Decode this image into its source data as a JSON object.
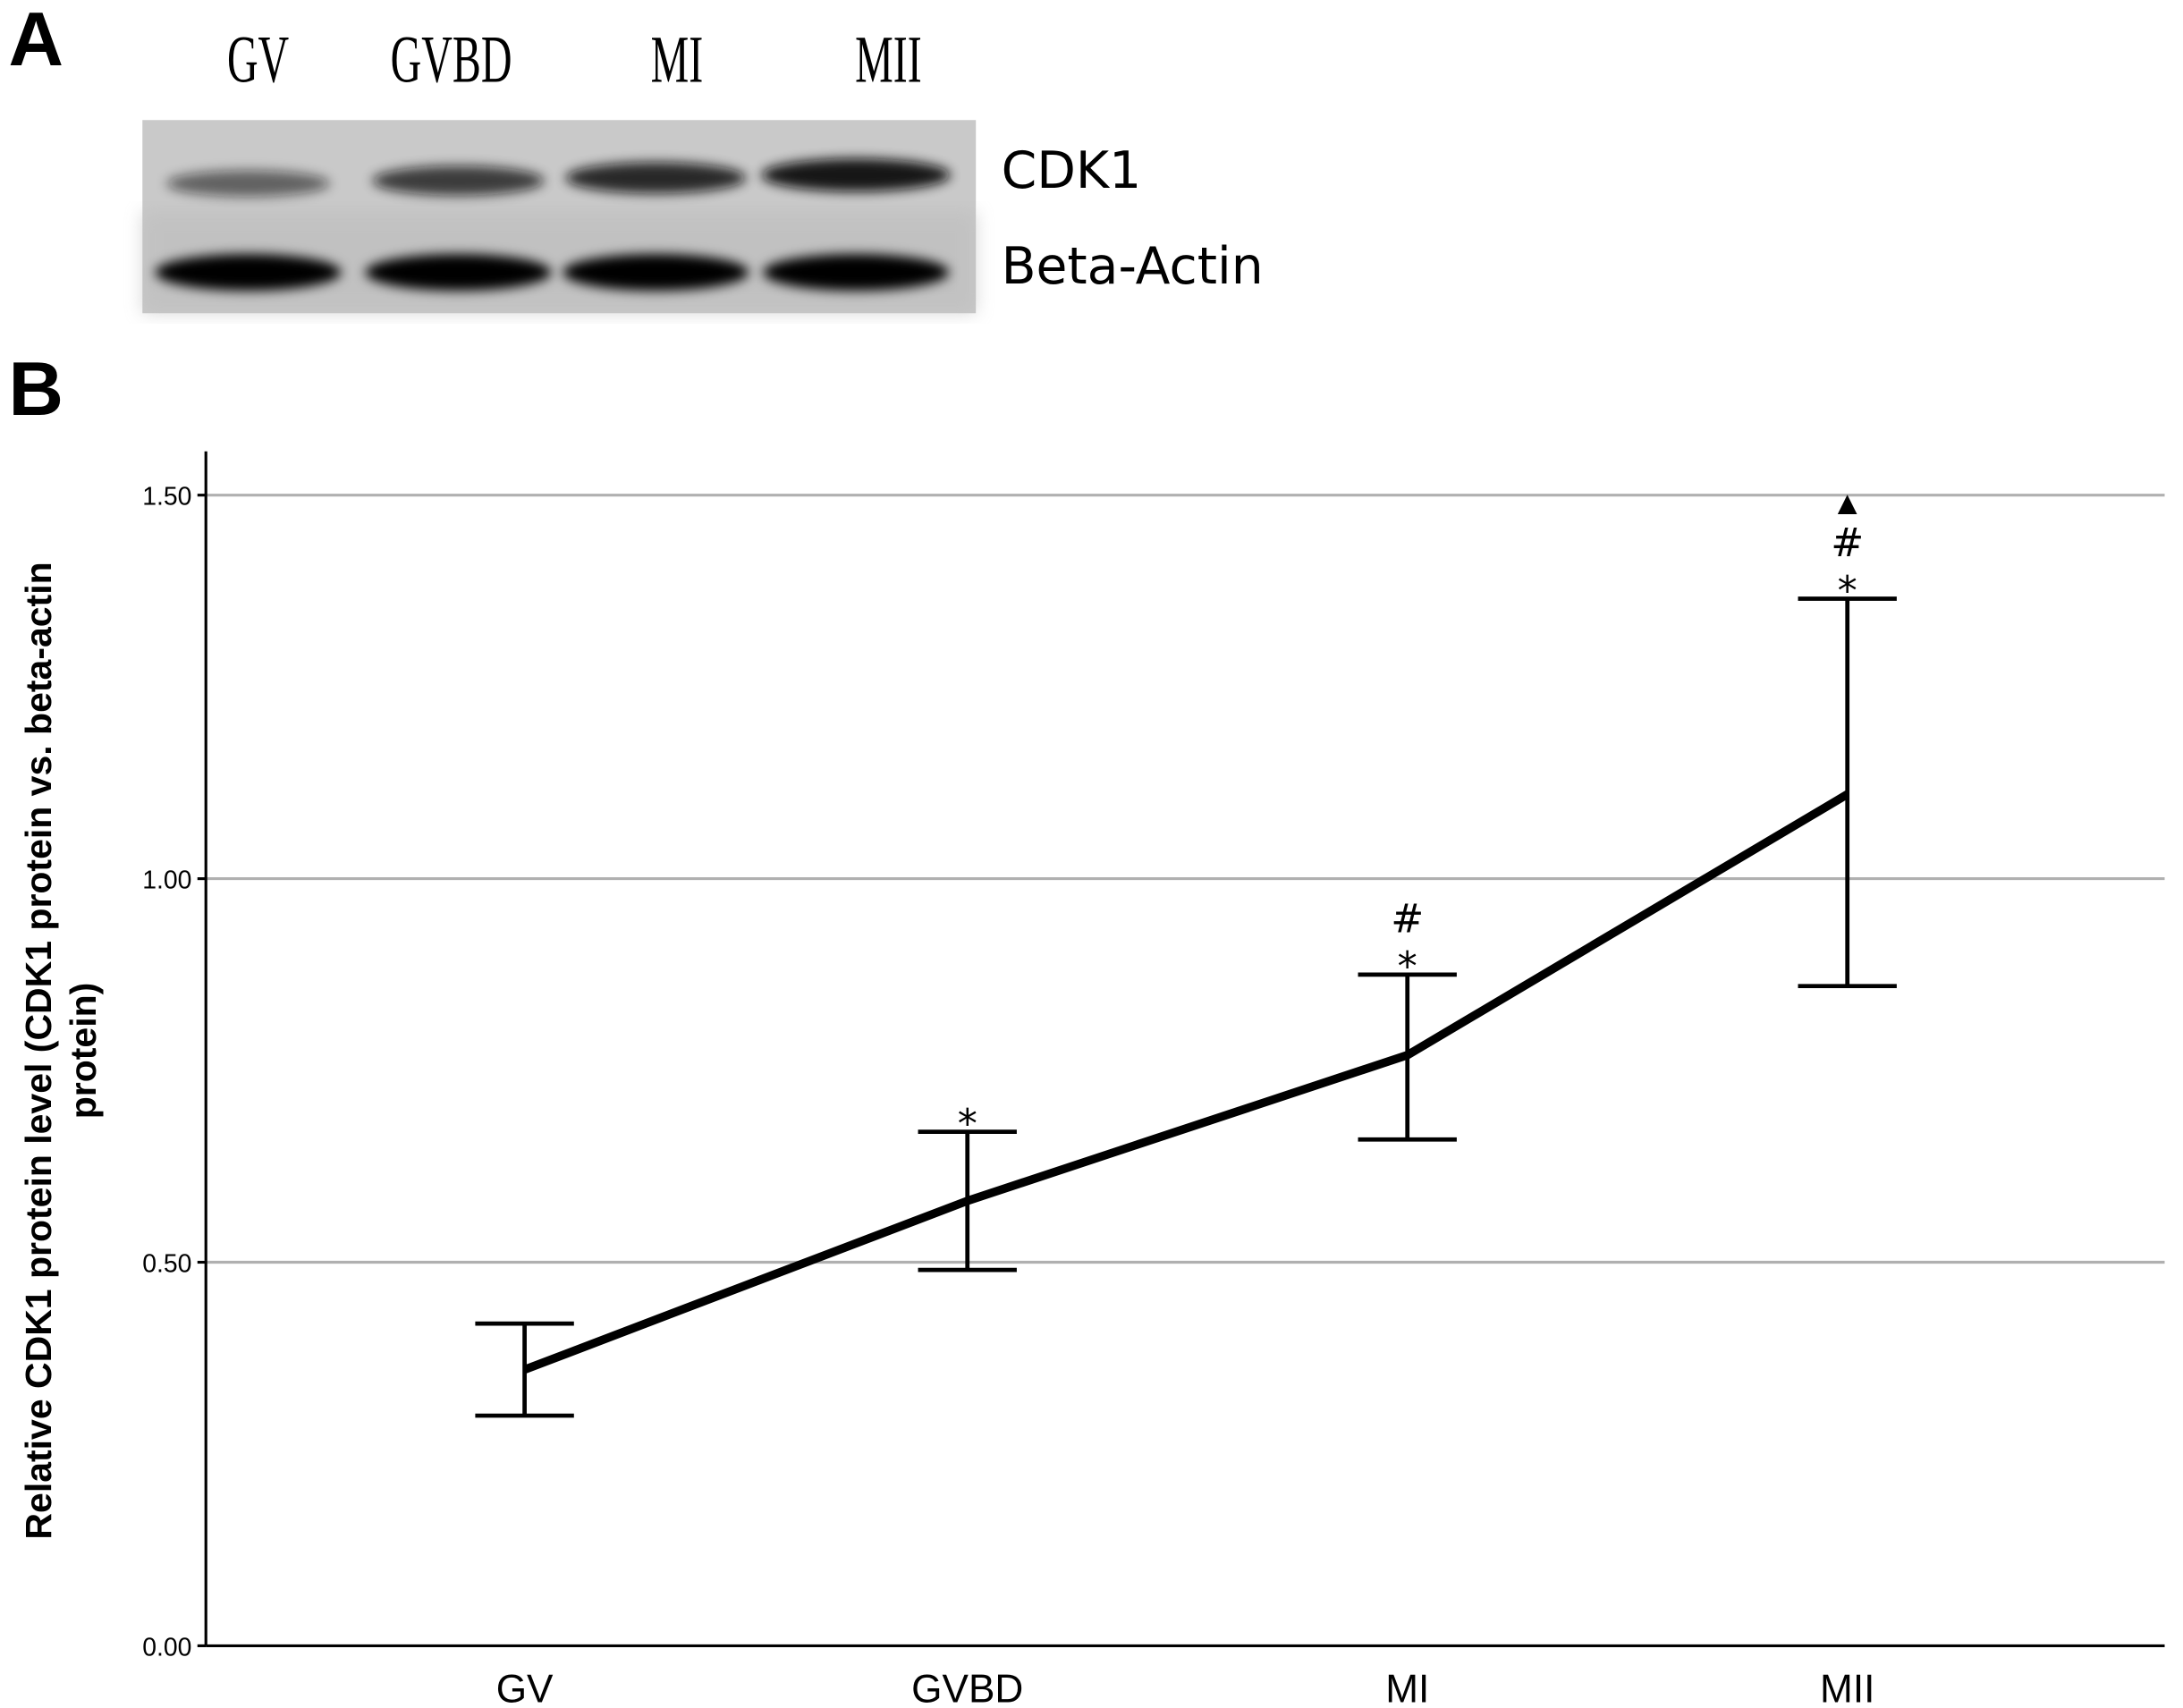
{
  "panel_a": {
    "label": "A",
    "lanes": [
      "GV",
      "GVBD",
      "MI",
      "MII"
    ],
    "bands": [
      "CDK1",
      "Beta-Actin"
    ],
    "cdk1_intensity": [
      0.55,
      0.75,
      0.85,
      0.95
    ]
  },
  "panel_b": {
    "label": "B"
  },
  "chart_data": {
    "type": "line",
    "title": "",
    "xlabel": "",
    "ylabel": "Relative CDK1 protein level (CDK1 protein vs. beta-actin protein)",
    "ylabel_lines": [
      "Relative CDK1 protein level (CDK1 protein vs. beta-actin",
      "protein)"
    ],
    "categories": [
      "GV",
      "GVBD",
      "MI",
      "MII"
    ],
    "series": [
      {
        "name": "CDK1",
        "values": [
          0.36,
          0.58,
          0.77,
          1.11
        ],
        "error_upper": [
          0.42,
          0.67,
          0.875,
          1.365
        ],
        "error_lower": [
          0.3,
          0.49,
          0.66,
          0.86
        ],
        "annotations": [
          [],
          [
            "*"
          ],
          [
            "*",
            "#"
          ],
          [
            "*",
            "#",
            "▲"
          ]
        ]
      }
    ],
    "ylim": [
      0,
      1.5
    ],
    "yticks": [
      "0.00",
      "0.50",
      "1.00",
      "1.50"
    ],
    "ytick_values": [
      0,
      0.5,
      1.0,
      1.5
    ],
    "grid": true,
    "colors": {
      "line": "#000000",
      "grid": "#b0b0b0"
    }
  }
}
